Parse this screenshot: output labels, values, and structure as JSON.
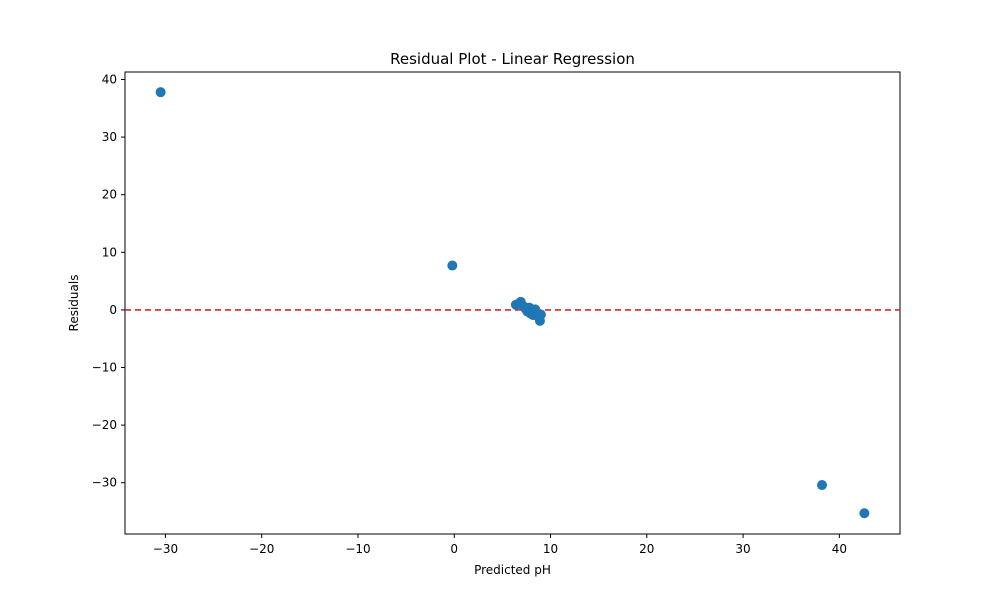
{
  "chart_data": {
    "type": "scatter",
    "title": "Residual Plot - Linear Regression",
    "xlabel": "Predicted pH",
    "ylabel": "Residuals",
    "xlim": [
      -34.2,
      46.3
    ],
    "ylim": [
      -38.9,
      41.3
    ],
    "xticks": [
      -30,
      -20,
      -10,
      0,
      10,
      20,
      30,
      40
    ],
    "yticks": [
      -30,
      -20,
      -10,
      0,
      10,
      20,
      30,
      40
    ],
    "grid": false,
    "marker_color": "#1f77b4",
    "reference_line": {
      "y": 0,
      "color": "#d62728",
      "style": "dashed"
    },
    "points": [
      {
        "x": -30.5,
        "y": 37.8
      },
      {
        "x": -0.2,
        "y": 7.7
      },
      {
        "x": 6.4,
        "y": 0.9
      },
      {
        "x": 6.9,
        "y": 1.4
      },
      {
        "x": 7.2,
        "y": 0.6
      },
      {
        "x": 7.4,
        "y": 0.2
      },
      {
        "x": 7.6,
        "y": -0.3
      },
      {
        "x": 7.8,
        "y": 0.4
      },
      {
        "x": 7.9,
        "y": -0.6
      },
      {
        "x": 8.1,
        "y": -0.1
      },
      {
        "x": 8.2,
        "y": -0.9
      },
      {
        "x": 8.4,
        "y": 0.1
      },
      {
        "x": 8.5,
        "y": -0.4
      },
      {
        "x": 8.7,
        "y": -0.7
      },
      {
        "x": 8.8,
        "y": -1.3
      },
      {
        "x": 8.9,
        "y": -1.9
      },
      {
        "x": 9.0,
        "y": -0.8
      },
      {
        "x": 38.2,
        "y": -30.4
      },
      {
        "x": 42.6,
        "y": -35.3
      }
    ]
  }
}
